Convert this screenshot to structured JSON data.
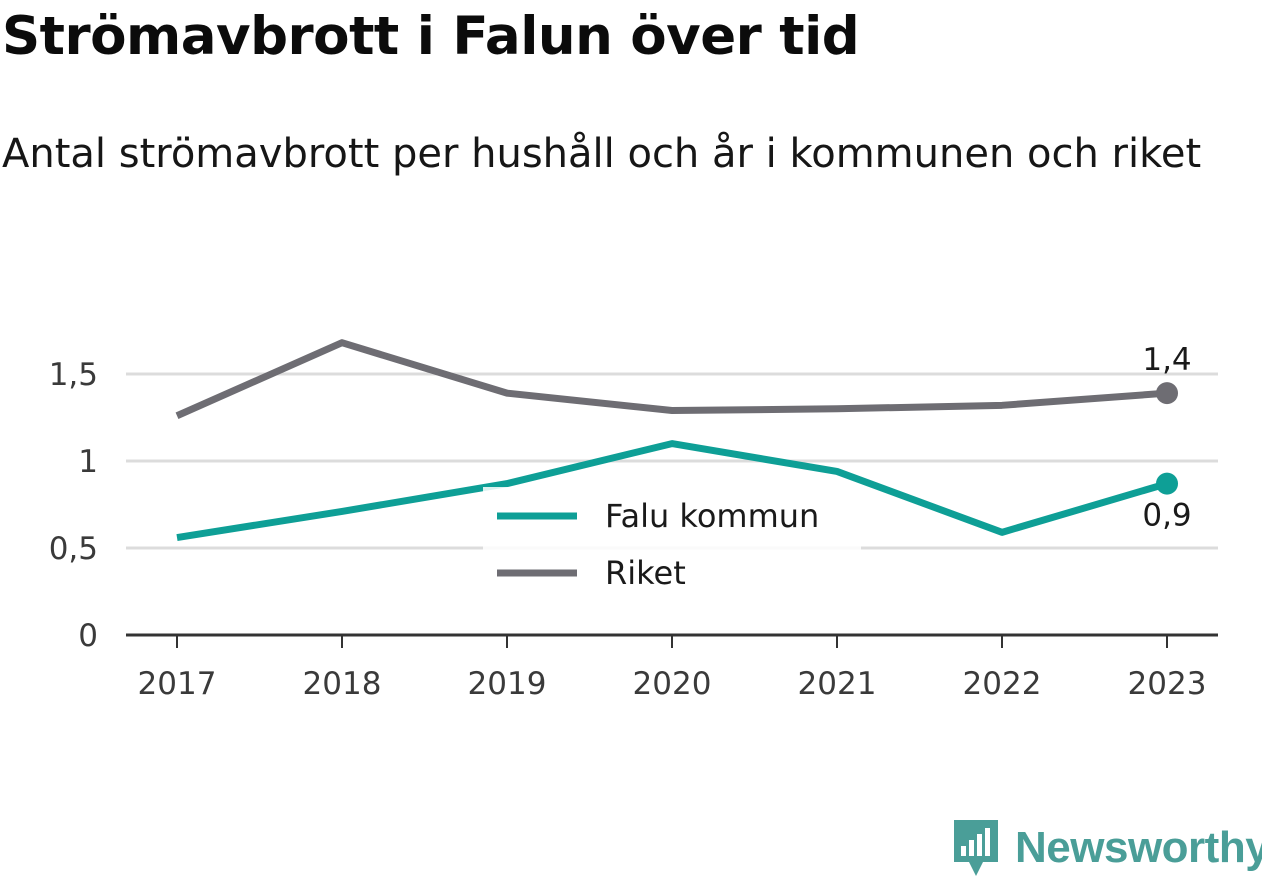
{
  "title": "Strömavbrott i Falun över tid",
  "subtitle": "Antal strömavbrott per hushåll och år i kommunen och riket",
  "brand": "Newsworthy",
  "colors": {
    "falun": "#0e9f96",
    "riket": "#6e6d73",
    "grid": "#dcdcdc",
    "axis": "#333333"
  },
  "chart_data": {
    "type": "line",
    "x": [
      "2017",
      "2018",
      "2019",
      "2020",
      "2021",
      "2022",
      "2023"
    ],
    "ylim": [
      0,
      1.85
    ],
    "yticks": [
      {
        "value": 0,
        "label": "0"
      },
      {
        "value": 0.5,
        "label": "0,5"
      },
      {
        "value": 1,
        "label": "1"
      },
      {
        "value": 1.5,
        "label": "1,5"
      }
    ],
    "grid": true,
    "legend_position": "center",
    "series": [
      {
        "name": "Falu kommun",
        "color": "#0e9f96",
        "values": [
          0.56,
          0.71,
          0.87,
          1.1,
          0.94,
          0.59,
          0.87
        ],
        "end_label": "0,9"
      },
      {
        "name": "Riket",
        "color": "#6e6d73",
        "values": [
          1.26,
          1.68,
          1.39,
          1.29,
          1.3,
          1.32,
          1.39
        ],
        "end_label": "1,4"
      }
    ]
  }
}
